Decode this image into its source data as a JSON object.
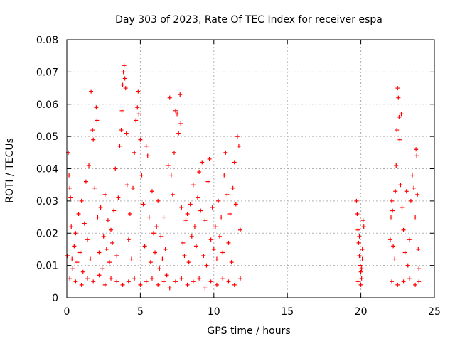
{
  "chart_data": {
    "type": "scatter",
    "title": "Day 303 of 2023, Rate Of TEC Index for receiver espa",
    "xlabel": "GPS time / hours",
    "ylabel": "ROTI / TECUs",
    "xlim": [
      0,
      25
    ],
    "ylim": [
      0,
      0.08
    ],
    "xticks": [
      "0",
      "5",
      "10",
      "15",
      "20",
      "25"
    ],
    "yticks": [
      "0",
      "0.01",
      "0.02",
      "0.03",
      "0.04",
      "0.05",
      "0.06",
      "0.07",
      "0.08"
    ],
    "grid": true,
    "marker": "+",
    "colors": {
      "series": "#ff0000",
      "grid": "#b0b0b0",
      "axes": "#000000"
    },
    "series": [
      {
        "points": [
          [
            0.05,
            0.013
          ],
          [
            0.1,
            0.045
          ],
          [
            0.15,
            0.038
          ],
          [
            0.2,
            0.034
          ],
          [
            0.25,
            0.031
          ],
          [
            0.3,
            0.022
          ],
          [
            0.35,
            0.012
          ],
          [
            0.4,
            0.009
          ],
          [
            0.5,
            0.016
          ],
          [
            0.6,
            0.02
          ],
          [
            0.7,
            0.011
          ],
          [
            0.8,
            0.026
          ],
          [
            0.9,
            0.014
          ],
          [
            1.0,
            0.03
          ],
          [
            1.1,
            0.008
          ],
          [
            1.2,
            0.023
          ],
          [
            1.3,
            0.036
          ],
          [
            1.4,
            0.018
          ],
          [
            1.5,
            0.041
          ],
          [
            1.6,
            0.012
          ],
          [
            1.65,
            0.064
          ],
          [
            1.75,
            0.052
          ],
          [
            1.8,
            0.049
          ],
          [
            1.9,
            0.034
          ],
          [
            2.0,
            0.059
          ],
          [
            2.05,
            0.055
          ],
          [
            2.1,
            0.025
          ],
          [
            2.2,
            0.014
          ],
          [
            2.3,
            0.028
          ],
          [
            2.4,
            0.009
          ],
          [
            2.5,
            0.019
          ],
          [
            2.6,
            0.032
          ],
          [
            2.7,
            0.015
          ],
          [
            2.8,
            0.024
          ],
          [
            2.9,
            0.011
          ],
          [
            3.0,
            0.021
          ],
          [
            3.1,
            0.017
          ],
          [
            3.2,
            0.027
          ],
          [
            3.3,
            0.04
          ],
          [
            3.4,
            0.013
          ],
          [
            3.5,
            0.031
          ],
          [
            3.6,
            0.047
          ],
          [
            3.7,
            0.052
          ],
          [
            3.75,
            0.058
          ],
          [
            3.8,
            0.066
          ],
          [
            3.85,
            0.07
          ],
          [
            3.9,
            0.072
          ],
          [
            3.95,
            0.068
          ],
          [
            4.0,
            0.065
          ],
          [
            4.05,
            0.051
          ],
          [
            4.1,
            0.035
          ],
          [
            4.2,
            0.018
          ],
          [
            4.3,
            0.026
          ],
          [
            4.4,
            0.012
          ],
          [
            4.5,
            0.034
          ],
          [
            4.6,
            0.045
          ],
          [
            4.7,
            0.055
          ],
          [
            4.8,
            0.059
          ],
          [
            4.85,
            0.064
          ],
          [
            4.9,
            0.057
          ],
          [
            5.0,
            0.049
          ],
          [
            5.1,
            0.038
          ],
          [
            5.2,
            0.029
          ],
          [
            5.3,
            0.016
          ],
          [
            5.4,
            0.047
          ],
          [
            5.5,
            0.044
          ],
          [
            5.6,
            0.025
          ],
          [
            5.7,
            0.011
          ],
          [
            5.8,
            0.033
          ],
          [
            5.9,
            0.02
          ],
          [
            6.0,
            0.014
          ],
          [
            6.1,
            0.022
          ],
          [
            6.2,
            0.03
          ],
          [
            6.3,
            0.009
          ],
          [
            6.4,
            0.019
          ],
          [
            6.5,
            0.012
          ],
          [
            6.6,
            0.025
          ],
          [
            6.7,
            0.015
          ],
          [
            6.8,
            0.007
          ],
          [
            6.9,
            0.041
          ],
          [
            7.0,
            0.062
          ],
          [
            7.1,
            0.038
          ],
          [
            7.2,
            0.032
          ],
          [
            7.3,
            0.045
          ],
          [
            7.4,
            0.058
          ],
          [
            7.5,
            0.057
          ],
          [
            7.6,
            0.051
          ],
          [
            7.7,
            0.063
          ],
          [
            7.75,
            0.054
          ],
          [
            7.8,
            0.028
          ],
          [
            7.9,
            0.017
          ],
          [
            8.0,
            0.013
          ],
          [
            8.1,
            0.024
          ],
          [
            8.2,
            0.026
          ],
          [
            8.3,
            0.011
          ],
          [
            8.4,
            0.029
          ],
          [
            8.5,
            0.019
          ],
          [
            8.6,
            0.035
          ],
          [
            8.7,
            0.022
          ],
          [
            8.8,
            0.016
          ],
          [
            8.9,
            0.031
          ],
          [
            9.0,
            0.039
          ],
          [
            9.1,
            0.027
          ],
          [
            9.2,
            0.042
          ],
          [
            9.3,
            0.013
          ],
          [
            9.4,
            0.024
          ],
          [
            9.5,
            0.01
          ],
          [
            9.6,
            0.036
          ],
          [
            9.7,
            0.043
          ],
          [
            9.8,
            0.018
          ],
          [
            9.9,
            0.028
          ],
          [
            10.0,
            0.015
          ],
          [
            10.1,
            0.022
          ],
          [
            10.2,
            0.012
          ],
          [
            10.3,
            0.03
          ],
          [
            10.4,
            0.019
          ],
          [
            10.5,
            0.025
          ],
          [
            10.6,
            0.014
          ],
          [
            10.7,
            0.038
          ],
          [
            10.8,
            0.045
          ],
          [
            10.9,
            0.032
          ],
          [
            11.0,
            0.017
          ],
          [
            11.1,
            0.026
          ],
          [
            11.2,
            0.011
          ],
          [
            11.3,
            0.034
          ],
          [
            11.4,
            0.042
          ],
          [
            11.5,
            0.029
          ],
          [
            11.6,
            0.05
          ],
          [
            11.7,
            0.047
          ],
          [
            11.8,
            0.021
          ],
          [
            0.2,
            0.006
          ],
          [
            0.6,
            0.005
          ],
          [
            1.0,
            0.004
          ],
          [
            1.4,
            0.006
          ],
          [
            1.8,
            0.005
          ],
          [
            2.2,
            0.007
          ],
          [
            2.6,
            0.004
          ],
          [
            3.0,
            0.006
          ],
          [
            3.4,
            0.005
          ],
          [
            3.8,
            0.004
          ],
          [
            4.2,
            0.005
          ],
          [
            4.6,
            0.006
          ],
          [
            5.0,
            0.004
          ],
          [
            5.4,
            0.005
          ],
          [
            5.8,
            0.006
          ],
          [
            6.2,
            0.004
          ],
          [
            6.6,
            0.005
          ],
          [
            7.0,
            0.003
          ],
          [
            7.4,
            0.005
          ],
          [
            7.8,
            0.006
          ],
          [
            8.2,
            0.004
          ],
          [
            8.6,
            0.005
          ],
          [
            9.0,
            0.006
          ],
          [
            9.4,
            0.003
          ],
          [
            9.8,
            0.005
          ],
          [
            10.2,
            0.004
          ],
          [
            10.6,
            0.006
          ],
          [
            11.0,
            0.005
          ],
          [
            11.4,
            0.004
          ],
          [
            11.8,
            0.006
          ],
          [
            19.7,
            0.03
          ],
          [
            19.75,
            0.026
          ],
          [
            19.8,
            0.021
          ],
          [
            19.85,
            0.017
          ],
          [
            19.9,
            0.013
          ],
          [
            19.95,
            0.01
          ],
          [
            20.0,
            0.008
          ],
          [
            20.05,
            0.006
          ],
          [
            20.1,
            0.012
          ],
          [
            20.15,
            0.024
          ],
          [
            20.2,
            0.022
          ],
          [
            20.0,
            0.004
          ],
          [
            19.8,
            0.005
          ],
          [
            20.1,
            0.015
          ],
          [
            19.9,
            0.019
          ],
          [
            20.05,
            0.009
          ],
          [
            22.0,
            0.018
          ],
          [
            22.05,
            0.025
          ],
          [
            22.1,
            0.03
          ],
          [
            22.15,
            0.027
          ],
          [
            22.2,
            0.016
          ],
          [
            22.3,
            0.012
          ],
          [
            22.35,
            0.033
          ],
          [
            22.4,
            0.041
          ],
          [
            22.45,
            0.052
          ],
          [
            22.5,
            0.065
          ],
          [
            22.55,
            0.062
          ],
          [
            22.6,
            0.056
          ],
          [
            22.65,
            0.049
          ],
          [
            22.7,
            0.035
          ],
          [
            22.75,
            0.057
          ],
          [
            22.8,
            0.028
          ],
          [
            22.9,
            0.021
          ],
          [
            23.0,
            0.014
          ],
          [
            23.1,
            0.033
          ],
          [
            23.2,
            0.01
          ],
          [
            23.3,
            0.018
          ],
          [
            23.4,
            0.03
          ],
          [
            23.5,
            0.038
          ],
          [
            23.6,
            0.034
          ],
          [
            23.7,
            0.025
          ],
          [
            23.75,
            0.046
          ],
          [
            23.8,
            0.044
          ],
          [
            23.85,
            0.032
          ],
          [
            23.9,
            0.015
          ],
          [
            23.95,
            0.009
          ],
          [
            22.1,
            0.005
          ],
          [
            22.5,
            0.004
          ],
          [
            22.9,
            0.005
          ],
          [
            23.3,
            0.006
          ],
          [
            23.7,
            0.004
          ],
          [
            23.95,
            0.005
          ]
        ]
      }
    ]
  }
}
